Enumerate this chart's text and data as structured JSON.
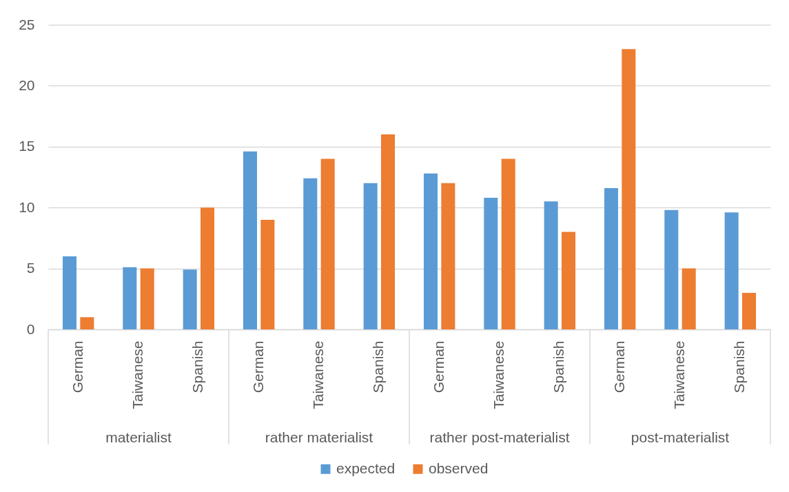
{
  "chart_data": {
    "type": "bar",
    "categories": [
      "German",
      "Taiwanese",
      "Spanish",
      "German",
      "Taiwanese",
      "Spanish",
      "German",
      "Taiwanese",
      "Spanish",
      "German",
      "Taiwanese",
      "Spanish"
    ],
    "annotations": [
      "materialist",
      "rather materialist",
      "rather post-materialist",
      "post-materialist"
    ],
    "series": [
      {
        "name": "expected",
        "color": "#5b9bd5",
        "values": [
          6.0,
          5.1,
          4.9,
          14.6,
          12.4,
          12.0,
          12.8,
          10.8,
          10.5,
          11.6,
          9.8,
          9.6
        ]
      },
      {
        "name": "observed",
        "color": "#ed7d31",
        "values": [
          1,
          5,
          10,
          9,
          14,
          16,
          12,
          14,
          8,
          23,
          5,
          3
        ]
      }
    ],
    "ylim": [
      0,
      25
    ],
    "yticks": [
      0,
      5,
      10,
      15,
      20,
      25
    ],
    "grid": "y",
    "legend": "bottom"
  }
}
